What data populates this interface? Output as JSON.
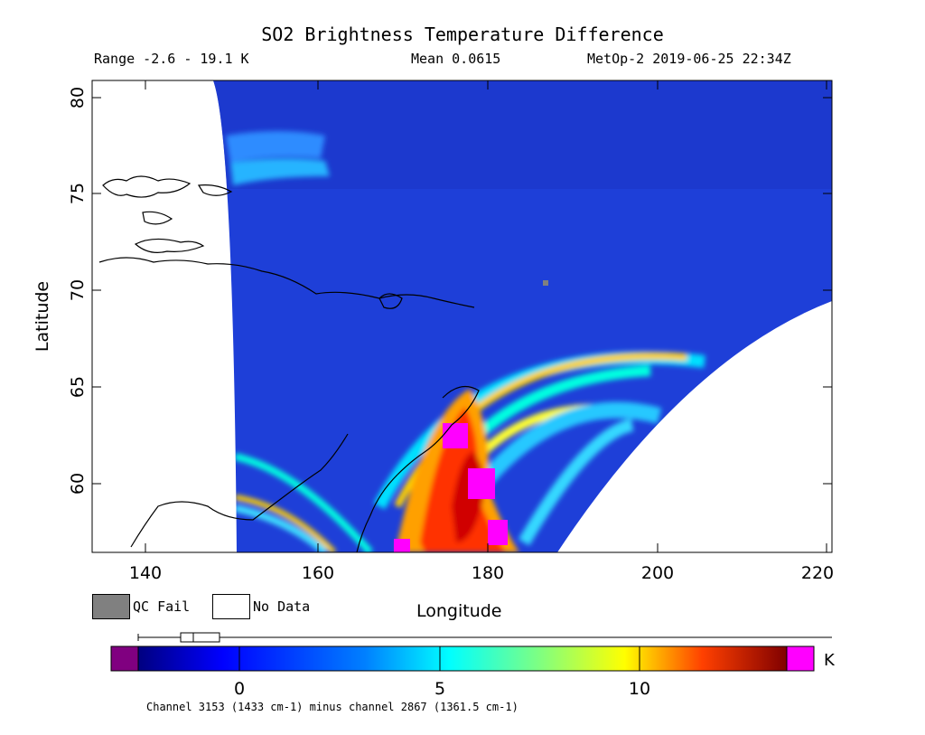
{
  "title": "SO2 Brightness Temperature Difference",
  "header": {
    "range_text": "Range -2.6 - 19.1 K",
    "mean_text": "Mean 0.0615",
    "satellite_text": "MetOp-2 2019-06-25 22:34Z"
  },
  "axes": {
    "xlabel": "Longitude",
    "ylabel": "Latitude",
    "x_ticks": [
      "140",
      "160",
      "180",
      "200",
      "220"
    ],
    "y_ticks": [
      "60",
      "65",
      "70",
      "75",
      "80"
    ],
    "xlim": [
      134,
      221
    ],
    "ylim": [
      56.5,
      81
    ]
  },
  "legend": {
    "qc_fail_label": "QC Fail",
    "no_data_label": "No Data",
    "qc_fail_color": "#808080",
    "no_data_color": "#ffffff"
  },
  "colorbar": {
    "unit": "K",
    "ticks": [
      "0",
      "5",
      "10"
    ],
    "tick_values": [
      0,
      5,
      10
    ],
    "range": [
      -2.6,
      14
    ],
    "under_color": "#800080",
    "over_color": "#ff00ff"
  },
  "footnote": "Channel 3153 (1433 cm-1) minus channel 2867 (1361.5 cm-1)",
  "colors": {
    "background_field": "#1e3fd8",
    "plume_low": "#00ffd0",
    "plume_mid": "#ffff00",
    "plume_high": "#ff2000",
    "plume_peak": "#ff00ff"
  }
}
